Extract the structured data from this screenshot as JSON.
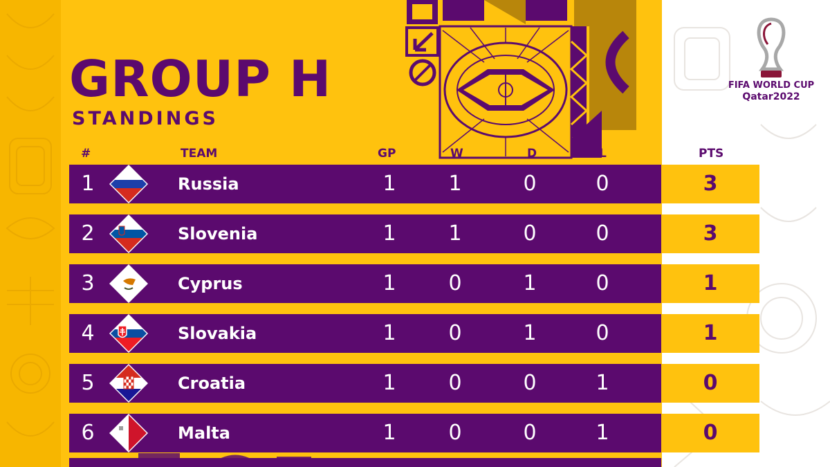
{
  "header": {
    "title": "GROUP H",
    "subtitle": "STANDINGS"
  },
  "columns": {
    "rank": "#",
    "team": "TEAM",
    "gp": "GP",
    "w": "W",
    "d": "D",
    "l": "L",
    "pts": "PTS"
  },
  "logo": {
    "line1": "FIFA WORLD CUP",
    "line2": "Qatar2022"
  },
  "colors": {
    "background": "#FFC20E",
    "accent": "#5B0A6E",
    "text_light": "#FFFFFF"
  },
  "standings": [
    {
      "rank": "1",
      "team": "Russia",
      "flag_icon": "russia-flag-icon",
      "gp": "1",
      "w": "1",
      "d": "0",
      "l": "0",
      "pts": "3"
    },
    {
      "rank": "2",
      "team": "Slovenia",
      "flag_icon": "slovenia-flag-icon",
      "gp": "1",
      "w": "1",
      "d": "0",
      "l": "0",
      "pts": "3"
    },
    {
      "rank": "3",
      "team": "Cyprus",
      "flag_icon": "cyprus-flag-icon",
      "gp": "1",
      "w": "0",
      "d": "1",
      "l": "0",
      "pts": "1"
    },
    {
      "rank": "4",
      "team": "Slovakia",
      "flag_icon": "slovakia-flag-icon",
      "gp": "1",
      "w": "0",
      "d": "1",
      "l": "0",
      "pts": "1"
    },
    {
      "rank": "5",
      "team": "Croatia",
      "flag_icon": "croatia-flag-icon",
      "gp": "1",
      "w": "0",
      "d": "0",
      "l": "1",
      "pts": "0"
    },
    {
      "rank": "6",
      "team": "Malta",
      "flag_icon": "malta-flag-icon",
      "gp": "1",
      "w": "0",
      "d": "0",
      "l": "1",
      "pts": "0"
    }
  ]
}
